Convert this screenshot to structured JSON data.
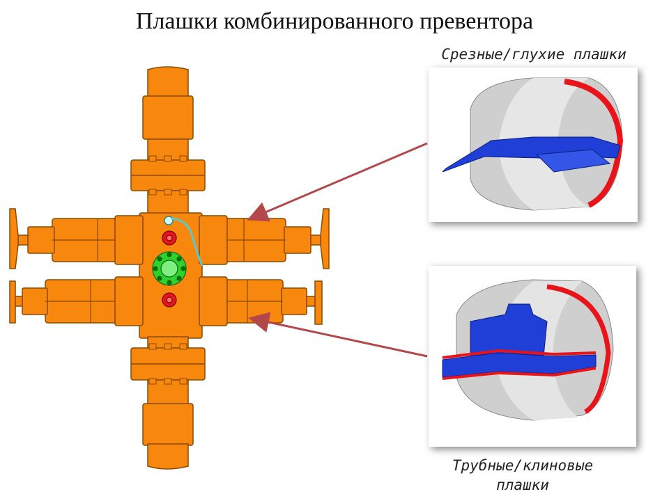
{
  "title": "Плашки комбинированного превентора",
  "labels": {
    "shear_blind_rams": "Срезные/глухие плашки",
    "pipe_wedge_rams_line1": "Трубные/клиновые",
    "pipe_wedge_rams_line2": "плашки"
  },
  "colors": {
    "body": "#f7870d",
    "outline": "#8a4a00",
    "flange_green": "#2fd12f",
    "valve_red": "#e3161b",
    "ram_blue": "#1f3fd6",
    "seal_red": "#e8141a",
    "steel_gray": "#c8c8c8",
    "arrow": "#b4474a",
    "hydraulic_line": "#59c9c9"
  }
}
